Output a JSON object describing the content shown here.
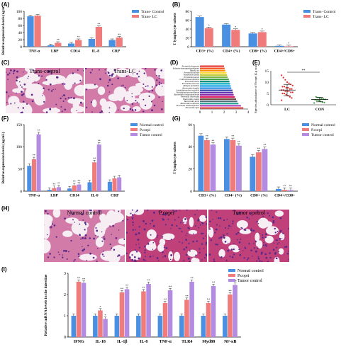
{
  "panel_labels": {
    "A": "(A)",
    "B": "(B)",
    "C": "(C)",
    "D": "(D)",
    "E": "(E)",
    "F": "(F)",
    "G": "(G)",
    "H": "(H)",
    "I": "(I)"
  },
  "colors": {
    "blue": "#4A90E2",
    "salmon": "#F07B7B",
    "purple": "#B38BE0",
    "red": "#E03030",
    "bar_palette": [
      "#e53935",
      "#f4511e",
      "#fb8c00",
      "#fdd835",
      "#c0ca33",
      "#7cb342",
      "#43a047",
      "#00897b",
      "#00acc1",
      "#039be5",
      "#1e88e5",
      "#3949ab",
      "#5e35b1",
      "#8e24aa",
      "#d81b60",
      "#6d4c41",
      "#546e7a",
      "#26a69a",
      "#ab47bc",
      "#ef5350"
    ]
  },
  "panel_c": {
    "left_caption": "Trans-control",
    "right_caption": "Trans-LC"
  },
  "panel_h": {
    "captions": [
      "Normal control",
      "P.copri",
      "Tumor control"
    ]
  },
  "chart_data": [
    {
      "id": "A",
      "type": "bar",
      "ylabel": "Relative expression levels (ng/mL)",
      "categories": [
        "TNF-α",
        "LBP",
        "CD14",
        "IL-8",
        "CRP"
      ],
      "ylim": [
        0,
        100
      ],
      "yticks": [
        0,
        20,
        40,
        60,
        80,
        100
      ],
      "series": [
        {
          "name": "Trans- Control",
          "color": "#4A90E2",
          "values": [
            86,
            4,
            9,
            22,
            19
          ]
        },
        {
          "name": "Trans- LC",
          "color": "#F07B7B",
          "values": [
            88,
            11,
            19,
            56,
            26
          ]
        }
      ],
      "annotations": [
        "",
        "**",
        "**",
        "**",
        "**"
      ]
    },
    {
      "id": "B",
      "type": "bar",
      "ylabel": "T lymphocyte subsets",
      "categories": [
        "CD3+ (%)",
        "CD4+ (%)",
        "CD8+ (%)",
        "CD4+/CD8+"
      ],
      "ylim": [
        0,
        80
      ],
      "yticks": [
        0,
        20,
        40,
        60,
        80
      ],
      "series": [
        {
          "name": "Trans- Control",
          "color": "#4A90E2",
          "values": [
            67,
            50,
            30,
            2
          ]
        },
        {
          "name": "Trans- LC",
          "color": "#F07B7B",
          "values": [
            42,
            38,
            33,
            1
          ]
        }
      ],
      "annotations": [
        "*",
        "*",
        "*",
        "*"
      ]
    },
    {
      "id": "D",
      "type": "bar",
      "orientation": "horizontal",
      "categories": [
        "Prevotella bergensis",
        "Eubacteriumcoprostanoligenes",
        "Blautia sp.",
        "Prevotella salivae",
        "Ruminococcaceae",
        "Prevotella buccae",
        "Collinsella aerofaciens",
        "Prevotella oralis",
        "Prevotella stercorea",
        "Alistipes putredinis",
        "Bacteroides fragilis",
        "Subdoligranulum variabile",
        "Fusobacterium mortiferum",
        "Bacteroides thetaiotaomicron",
        "Prevotella intermedia",
        "Bacteroides ovatus",
        "Bacteroides dorei",
        "Bacteroides uniformis",
        "Prevotella melaninogenica",
        "Prevotella copri"
      ],
      "values": [
        2.0,
        2.05,
        2.1,
        2.2,
        2.25,
        2.3,
        2.4,
        2.45,
        2.5,
        2.55,
        2.6,
        2.7,
        2.75,
        2.8,
        2.9,
        3.0,
        3.1,
        3.2,
        3.4,
        3.6
      ],
      "xlim": [
        0,
        4
      ],
      "xticks": [
        0,
        1,
        2,
        3,
        4
      ]
    },
    {
      "id": "E",
      "type": "scatter",
      "ylabel": "Species abundance of P.copri (Lg scale)",
      "categories": [
        "LC",
        "CON"
      ],
      "ylim": [
        0,
        15
      ],
      "yticks": [
        0,
        5,
        10,
        15
      ],
      "series": [
        {
          "name": "LC",
          "color": "#E03030",
          "mean": 6.5,
          "sd": 2.5,
          "values": [
            2,
            3,
            3.5,
            4,
            4.5,
            5,
            5,
            5.5,
            5.5,
            6,
            6,
            6,
            6.5,
            6.5,
            7,
            7,
            7.5,
            7.5,
            8,
            8,
            8.5,
            9,
            9.5,
            10,
            11,
            12,
            13
          ]
        },
        {
          "name": "CON",
          "color": "#43a047",
          "mean": 2.3,
          "sd": 1.0,
          "values": [
            0.8,
            1,
            1.2,
            1.5,
            1.8,
            2,
            2.2,
            2.4,
            2.6,
            2.8,
            3,
            3.2,
            3.5
          ]
        }
      ],
      "annotation": "**"
    },
    {
      "id": "F",
      "type": "bar",
      "ylabel": "Relative expression levels (ng/mL)",
      "categories": [
        "TNF-α",
        "LBP",
        "CD14",
        "IL-8",
        "CRP"
      ],
      "ylim": [
        0,
        150
      ],
      "yticks": [
        0,
        50,
        100,
        150
      ],
      "series": [
        {
          "name": "Normal control",
          "color": "#4A90E2",
          "values": [
            57,
            3,
            6,
            20,
            21
          ]
        },
        {
          "name": "P.corpi",
          "color": "#F07B7B",
          "values": [
            72,
            7,
            13,
            65,
            29
          ]
        },
        {
          "name": "Tumor control",
          "color": "#B38BE0",
          "values": [
            128,
            9,
            15,
            105,
            31
          ]
        }
      ],
      "annotations": [
        "**",
        "**",
        "**",
        "**",
        ""
      ]
    },
    {
      "id": "G",
      "type": "bar",
      "ylabel": "T lymphocyte subsets",
      "categories": [
        "CD3+ (%)",
        "CD4+ (%)",
        "CD8+ (%)",
        "CD4+/CD8+"
      ],
      "ylim": [
        0,
        60
      ],
      "yticks": [
        0,
        20,
        40,
        60
      ],
      "series": [
        {
          "name": "Normal control",
          "color": "#4A90E2",
          "values": [
            50,
            47,
            31,
            2
          ]
        },
        {
          "name": "P.corpi",
          "color": "#F07B7B",
          "values": [
            46,
            46,
            35,
            1.2
          ]
        },
        {
          "name": "Tumor control",
          "color": "#B38BE0",
          "values": [
            42,
            41,
            38,
            1
          ]
        }
      ],
      "annotations": [
        "**",
        "**",
        "**",
        "**"
      ]
    },
    {
      "id": "I",
      "type": "bar",
      "ylabel": "Relative mRNA levels in the intestine",
      "categories": [
        "IFNG",
        "IL-18",
        "IL-1β",
        "IL-8",
        "TNF-α",
        "TLR4",
        "Myd88",
        "NF-κB"
      ],
      "ylim": [
        0,
        3
      ],
      "yticks": [
        0,
        1,
        2,
        3
      ],
      "series": [
        {
          "name": "Normal control",
          "color": "#4A90E2",
          "values": [
            1,
            1,
            1,
            1,
            1,
            1,
            1,
            1
          ]
        },
        {
          "name": "P.copri",
          "color": "#F07B7B",
          "values": [
            2.6,
            1.25,
            2.1,
            2.15,
            1.6,
            1.75,
            1.6,
            2.0
          ]
        },
        {
          "name": "Tumor control",
          "color": "#B38BE0",
          "values": [
            2.55,
            0.85,
            2.25,
            2.5,
            2.2,
            2.6,
            2.4,
            2.45
          ]
        }
      ],
      "annotations": [
        "**",
        "*",
        "**",
        "**",
        "**",
        "**",
        "**",
        "**"
      ]
    }
  ]
}
